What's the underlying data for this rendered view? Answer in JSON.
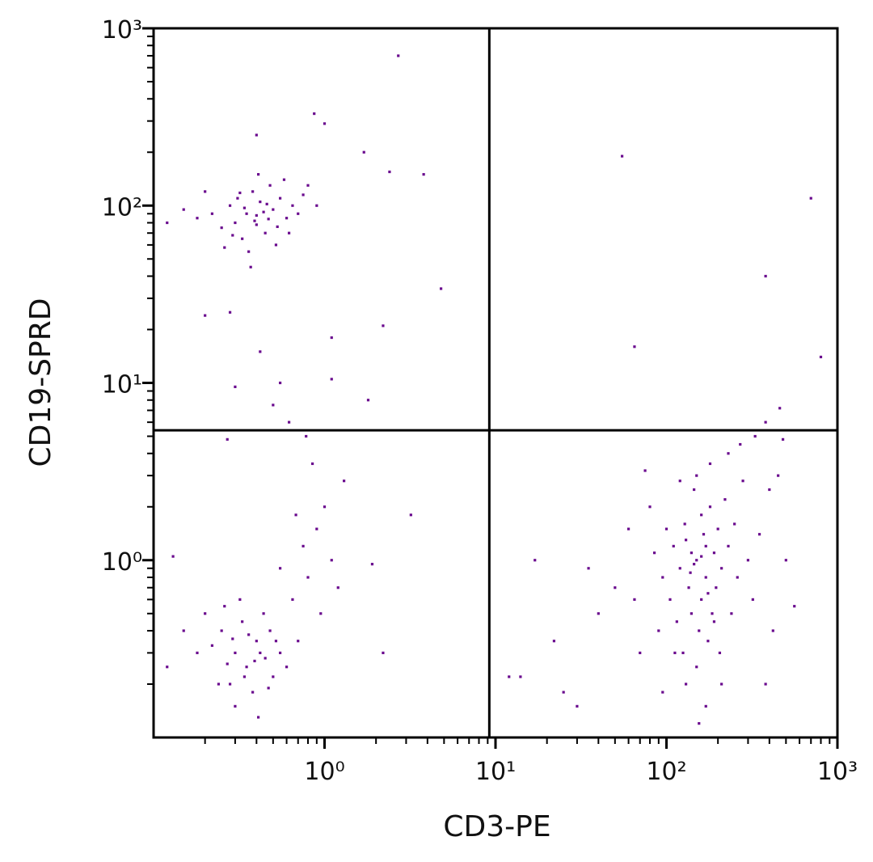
{
  "chart_data": {
    "type": "scatter",
    "x_label": "CD3-PE",
    "y_label": "CD19-SPRD",
    "xscale": "log",
    "yscale": "log",
    "xlim": [
      0.1,
      1000
    ],
    "ylim": [
      0.1,
      1000
    ],
    "xticks": [
      {
        "value": 1,
        "label": "10⁰"
      },
      {
        "value": 10,
        "label": "10¹"
      },
      {
        "value": 100,
        "label": "10²"
      },
      {
        "value": 1000,
        "label": "10³"
      }
    ],
    "yticks": [
      {
        "value": 1,
        "label": "10⁰"
      },
      {
        "value": 10,
        "label": "10¹"
      },
      {
        "value": 100,
        "label": "10²"
      },
      {
        "value": 1000,
        "label": "10³"
      }
    ],
    "xminorticks": [
      0.2,
      0.3,
      0.4,
      0.5,
      0.6,
      0.7,
      0.8,
      0.9,
      2,
      3,
      4,
      5,
      6,
      7,
      8,
      9,
      20,
      30,
      40,
      50,
      60,
      70,
      80,
      90,
      200,
      300,
      400,
      500,
      600,
      700,
      800,
      900
    ],
    "yminorticks": [
      0.2,
      0.3,
      0.4,
      0.5,
      0.6,
      0.7,
      0.8,
      0.9,
      2,
      3,
      4,
      5,
      6,
      7,
      8,
      9,
      20,
      30,
      40,
      50,
      60,
      70,
      80,
      90,
      200,
      300,
      400,
      500,
      600,
      700,
      800,
      900
    ],
    "quadrant_lines": {
      "x": 9.2,
      "y": 5.4
    },
    "color": "#6a0a8e",
    "x": [
      0.35,
      0.42,
      0.3,
      0.5,
      0.45,
      0.38,
      0.28,
      0.55,
      0.6,
      0.33,
      0.4,
      0.48,
      0.25,
      0.36,
      0.52,
      0.44,
      0.31,
      0.65,
      0.22,
      0.58,
      0.4,
      0.47,
      0.34,
      0.29,
      0.53,
      0.41,
      0.37,
      0.62,
      0.2,
      0.18,
      0.15,
      0.12,
      0.7,
      0.75,
      0.8,
      0.9,
      0.26,
      0.46,
      0.39,
      0.32,
      2.7,
      0.87,
      1.0,
      1.7,
      2.4,
      3.8,
      4.8,
      2.2,
      1.1,
      0.42,
      1.1,
      1.8,
      0.55,
      0.3,
      0.5,
      0.62,
      0.4,
      0.2,
      0.28,
      55,
      700,
      380,
      65,
      800,
      460,
      380,
      0.3,
      0.35,
      0.4,
      0.25,
      0.45,
      0.5,
      0.28,
      0.33,
      0.38,
      0.42,
      0.22,
      0.48,
      0.55,
      0.3,
      0.36,
      0.27,
      0.2,
      0.6,
      0.18,
      0.44,
      0.32,
      0.24,
      0.39,
      0.52,
      0.29,
      0.41,
      0.34,
      0.47,
      0.26,
      0.15,
      0.12,
      0.7,
      0.65,
      0.8,
      0.75,
      0.9,
      1.0,
      0.85,
      1.1,
      1.3,
      1.2,
      1.9,
      0.68,
      0.55,
      0.95,
      2.2,
      3.2,
      0.13,
      0.27,
      0.78,
      150,
      170,
      130,
      190,
      160,
      140,
      200,
      120,
      180,
      155,
      135,
      210,
      110,
      165,
      145,
      175,
      125,
      195,
      230,
      105,
      160,
      140,
      185,
      150,
      130,
      170,
      115,
      220,
      250,
      95,
      100,
      260,
      90,
      300,
      280,
      85,
      240,
      205,
      150,
      180,
      120,
      170,
      145,
      160,
      138,
      175,
      128,
      190,
      112,
      210,
      155,
      95,
      320,
      350,
      400,
      450,
      500,
      560,
      420,
      380,
      70,
      60,
      50,
      40,
      35,
      30,
      25,
      22,
      17,
      14,
      12,
      75,
      80,
      65,
      270,
      330,
      480,
      230
    ],
    "values": [
      90,
      105,
      80,
      95,
      70,
      120,
      100,
      110,
      85,
      65,
      88,
      130,
      75,
      55,
      60,
      92,
      110,
      100,
      90,
      140,
      78,
      84,
      97,
      68,
      76,
      150,
      45,
      70,
      120,
      85,
      95,
      80,
      90,
      115,
      130,
      100,
      58,
      102,
      82,
      118,
      700,
      330,
      290,
      200,
      155,
      150,
      34,
      21,
      18,
      15,
      10.5,
      8,
      10,
      9.5,
      7.5,
      6,
      250,
      24,
      25,
      190,
      110,
      40,
      16,
      14,
      7.2,
      6,
      0.3,
      0.25,
      0.35,
      0.4,
      0.28,
      0.22,
      0.2,
      0.45,
      0.18,
      0.3,
      0.33,
      0.4,
      0.3,
      0.15,
      0.38,
      0.26,
      0.5,
      0.25,
      0.3,
      0.5,
      0.6,
      0.2,
      0.27,
      0.35,
      0.36,
      0.13,
      0.22,
      0.19,
      0.55,
      0.4,
      0.25,
      0.35,
      0.6,
      0.8,
      1.2,
      1.5,
      2.0,
      3.5,
      1.0,
      2.8,
      0.7,
      0.95,
      1.8,
      0.9,
      0.5,
      0.3,
      1.8,
      1.05,
      4.8,
      5.0,
      1.0,
      0.8,
      1.3,
      1.1,
      0.6,
      0.5,
      1.5,
      0.9,
      2.0,
      0.4,
      0.7,
      0.9,
      1.2,
      1.4,
      2.5,
      0.35,
      0.3,
      0.7,
      1.2,
      0.6,
      1.8,
      1.1,
      0.5,
      0.25,
      0.2,
      0.15,
      0.45,
      2.2,
      1.6,
      0.8,
      1.5,
      0.8,
      0.4,
      1.0,
      2.8,
      1.1,
      0.5,
      0.3,
      3.0,
      3.5,
      2.8,
      1.2,
      0.95,
      1.05,
      0.85,
      0.65,
      1.6,
      0.45,
      0.3,
      0.2,
      0.12,
      0.18,
      0.6,
      1.4,
      2.5,
      3.0,
      1.0,
      0.55,
      0.4,
      0.2,
      0.3,
      1.5,
      0.7,
      0.5,
      0.9,
      0.15,
      0.18,
      0.35,
      1.0,
      0.22,
      0.22,
      3.2,
      2.0,
      0.6,
      4.5,
      5.0,
      4.8,
      4.0
    ]
  }
}
